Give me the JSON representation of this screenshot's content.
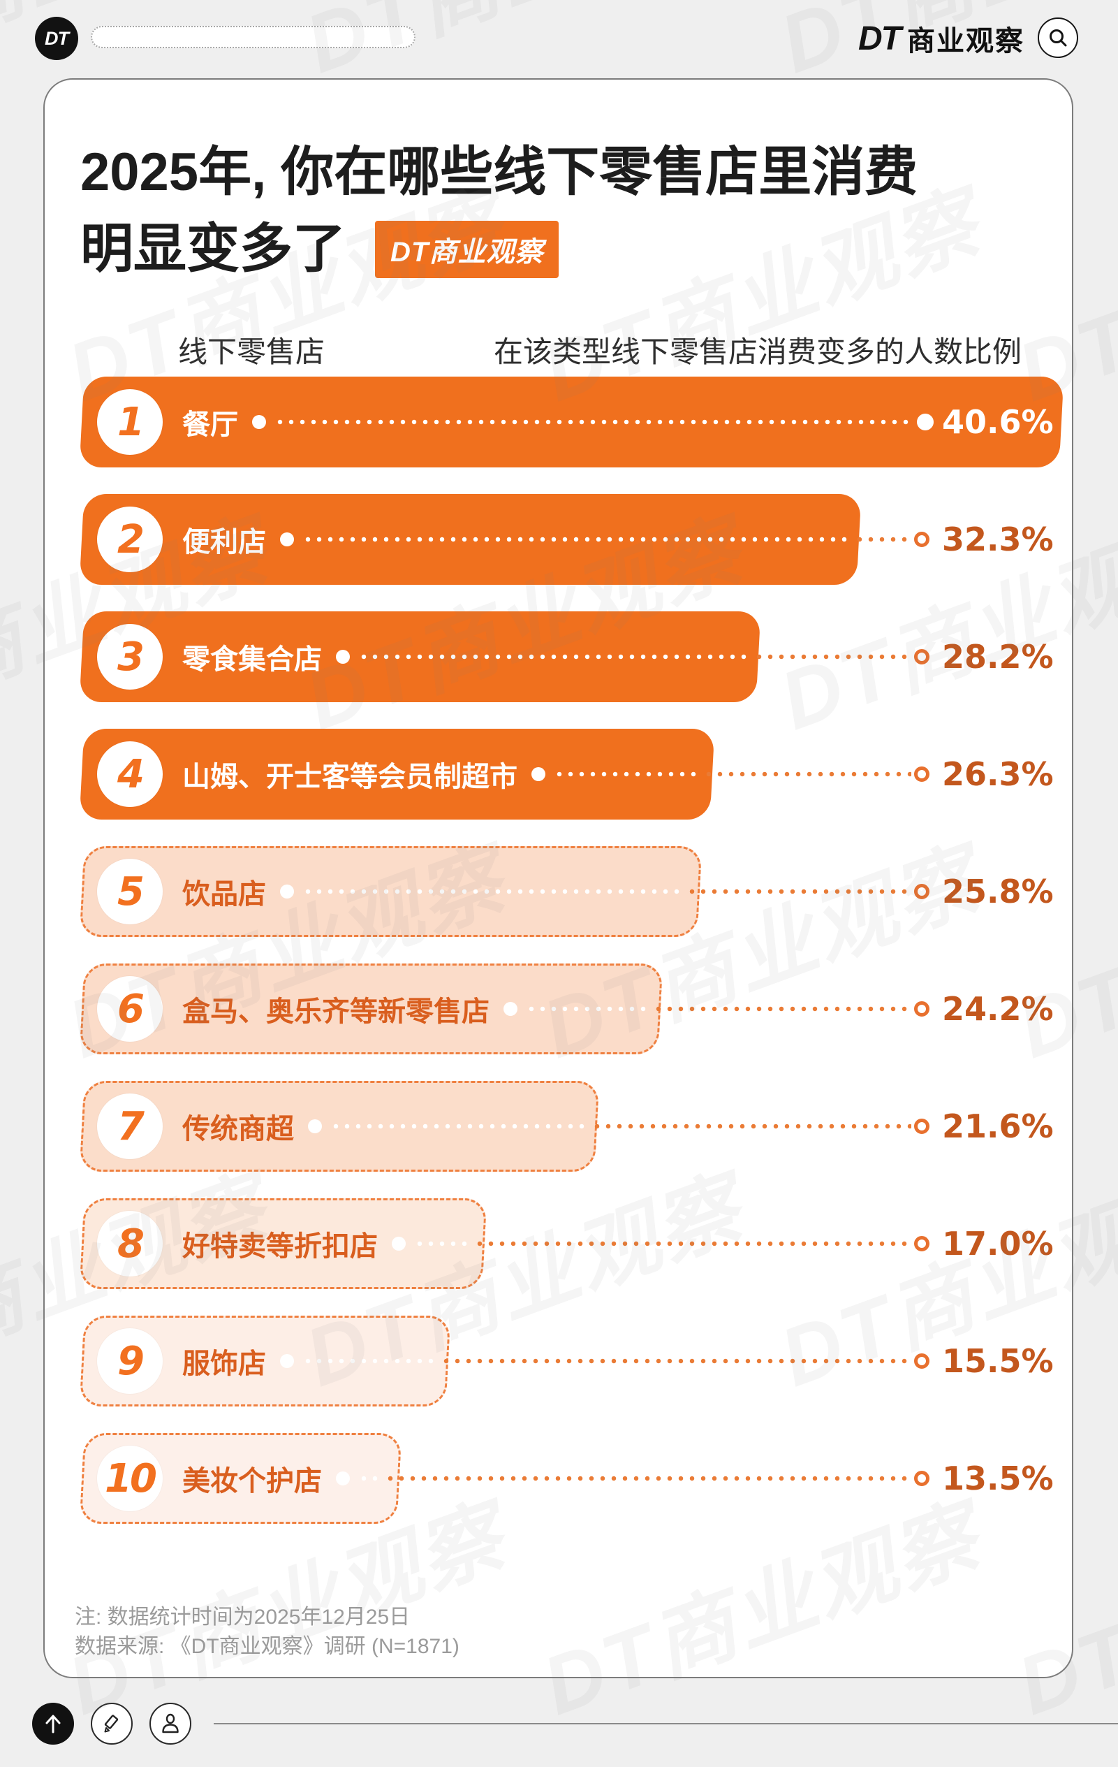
{
  "watermark": {
    "text": "DT商业观察"
  },
  "top_bar": {
    "logo_text": "DT",
    "search_placeholder": "",
    "brand_dt": "DT",
    "brand_name": "商业观察"
  },
  "header": {
    "title_line1": "2025年, 你在哪些线下零售店里消费",
    "title_line2": "明显变多了",
    "badge_label": "DT商业观察"
  },
  "chart_data": {
    "type": "bar",
    "orientation": "horizontal",
    "title": "2025年, 你在哪些线下零售店里消费明显变多了",
    "col_header_left": "线下零售店",
    "col_header_right": "在该类型线下零售店消费变多的人数比例",
    "unit": "%",
    "value_axis_visible": false,
    "grid": false,
    "categories": [
      "餐厅",
      "便利店",
      "零食集合店",
      "山姆、开士客等会员制超市",
      "饮品店",
      "盒马、奥乐齐等新零售店",
      "传统商超",
      "好特卖等折扣店",
      "服饰店",
      "美妆个护店"
    ],
    "values": [
      40.6,
      32.3,
      28.2,
      26.3,
      25.8,
      24.2,
      21.6,
      17.0,
      15.5,
      13.5
    ],
    "value_labels": [
      "40.6%",
      "32.3%",
      "28.2%",
      "26.3%",
      "25.8%",
      "24.2%",
      "21.6%",
      "17.0%",
      "15.5%",
      "13.5%"
    ],
    "rows": [
      {
        "rank": "1",
        "label": "餐厅",
        "value": 40.6,
        "value_label": "40.6%",
        "variant": "solid",
        "fill": "#F0701E"
      },
      {
        "rank": "2",
        "label": "便利店",
        "value": 32.3,
        "value_label": "32.3%",
        "variant": "solid",
        "fill": "#F0701E"
      },
      {
        "rank": "3",
        "label": "零食集合店",
        "value": 28.2,
        "value_label": "28.2%",
        "variant": "solid",
        "fill": "#F0701E"
      },
      {
        "rank": "4",
        "label": "山姆、开士客等会员制超市",
        "value": 26.3,
        "value_label": "26.3%",
        "variant": "solid",
        "fill": "#F0701E"
      },
      {
        "rank": "5",
        "label": "饮品店",
        "value": 25.8,
        "value_label": "25.8%",
        "variant": "light",
        "fill": "#FBDCC9"
      },
      {
        "rank": "6",
        "label": "盒马、奥乐齐等新零售店",
        "value": 24.2,
        "value_label": "24.2%",
        "variant": "light",
        "fill": "#FBDCC9"
      },
      {
        "rank": "7",
        "label": "传统商超",
        "value": 21.6,
        "value_label": "21.6%",
        "variant": "light",
        "fill": "#FBDDCA"
      },
      {
        "rank": "8",
        "label": "好特卖等折扣店",
        "value": 17.0,
        "value_label": "17.0%",
        "variant": "light",
        "fill": "#FCE9DC"
      },
      {
        "rank": "9",
        "label": "服饰店",
        "value": 15.5,
        "value_label": "15.5%",
        "variant": "light",
        "fill": "#FDEEE6"
      },
      {
        "rank": "10",
        "label": "美妆个护店",
        "value": 13.5,
        "value_label": "13.5%",
        "variant": "light",
        "fill": "#FDF0EA"
      }
    ]
  },
  "notes": {
    "line1": "注: 数据统计时间为2025年12月25日",
    "line2": "数据来源: 《DT商业观察》调研 (N=1871)"
  },
  "footer": {
    "icons": [
      "up-arrow",
      "pencil",
      "person"
    ]
  },
  "colors": {
    "solid_bar_orange": "#F0701E",
    "dashed_border_orange": "#EF8040",
    "leader_dot_orange": "#EA7B35",
    "percent_text": "#C3571D",
    "light_row_label": "#D95E1E",
    "rank_number": "#F2701F",
    "title_text": "#1D1D1D",
    "note_gray": "#9B9B9B",
    "page_bg": "#EFEFEF",
    "card_bg": "#FFFFFF"
  }
}
